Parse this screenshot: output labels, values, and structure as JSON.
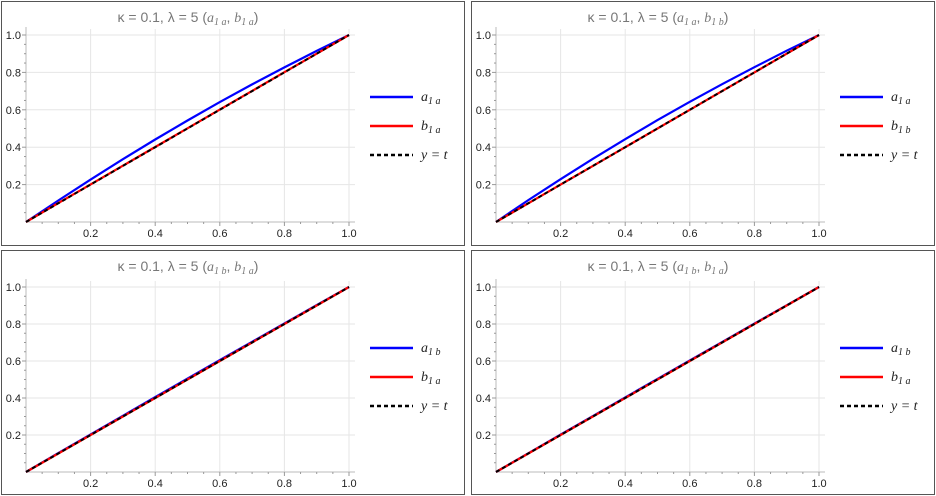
{
  "colors": {
    "a": "#0000ff",
    "b": "#ff0000",
    "ref": "#000000",
    "grid": "#e6e6e6",
    "title": "#777777"
  },
  "chart_data": [
    {
      "type": "line",
      "title": {
        "prefix": "κ = 0.1, λ = 5 (",
        "items": [
          {
            "base": "a",
            "sub": "1 a"
          },
          {
            "base": "b",
            "sub": "1 a"
          }
        ],
        "suffix": ")"
      },
      "xlim": [
        0,
        1
      ],
      "ylim": [
        0,
        1
      ],
      "xticks": [
        "0.2",
        "0.4",
        "0.6",
        "0.8",
        "1.0"
      ],
      "yticks": [
        "0.2",
        "0.4",
        "0.6",
        "0.8",
        "1.0"
      ],
      "grid": true,
      "legend": "right",
      "x": [
        0,
        0.1,
        0.2,
        0.3,
        0.4,
        0.5,
        0.6,
        0.7,
        0.8,
        0.9,
        1.0
      ],
      "series": [
        {
          "name": {
            "base": "a",
            "sub": "1 a"
          },
          "color": "#0000ff",
          "style": "solid",
          "values": [
            0,
            0.115,
            0.227,
            0.336,
            0.441,
            0.543,
            0.641,
            0.736,
            0.827,
            0.915,
            1
          ]
        },
        {
          "name": {
            "base": "b",
            "sub": "1 a"
          },
          "color": "#ff0000",
          "style": "solid",
          "values": [
            0,
            0.101,
            0.201,
            0.301,
            0.401,
            0.501,
            0.601,
            0.701,
            0.801,
            0.9,
            1
          ]
        },
        {
          "name": {
            "base": "y = t",
            "sub": ""
          },
          "color": "#000000",
          "style": "dashed",
          "values": [
            0,
            0.1,
            0.2,
            0.3,
            0.4,
            0.5,
            0.6,
            0.7,
            0.8,
            0.9,
            1
          ]
        }
      ]
    },
    {
      "type": "line",
      "title": {
        "prefix": "κ = 0.1, λ = 5 (",
        "items": [
          {
            "base": "a",
            "sub": "1 a"
          },
          {
            "base": "b",
            "sub": "1 b"
          }
        ],
        "suffix": ")"
      },
      "xlim": [
        0,
        1
      ],
      "ylim": [
        0,
        1
      ],
      "xticks": [
        "0.2",
        "0.4",
        "0.6",
        "0.8",
        "1.0"
      ],
      "yticks": [
        "0.2",
        "0.4",
        "0.6",
        "0.8",
        "1.0"
      ],
      "grid": true,
      "legend": "right",
      "x": [
        0,
        0.1,
        0.2,
        0.3,
        0.4,
        0.5,
        0.6,
        0.7,
        0.8,
        0.9,
        1.0
      ],
      "series": [
        {
          "name": {
            "base": "a",
            "sub": "1 a"
          },
          "color": "#0000ff",
          "style": "solid",
          "values": [
            0,
            0.117,
            0.229,
            0.338,
            0.443,
            0.545,
            0.643,
            0.737,
            0.828,
            0.916,
            1
          ]
        },
        {
          "name": {
            "base": "b",
            "sub": "1 b"
          },
          "color": "#ff0000",
          "style": "solid",
          "values": [
            0,
            0.1,
            0.2,
            0.3,
            0.4,
            0.5,
            0.6,
            0.7,
            0.8,
            0.9,
            1
          ]
        },
        {
          "name": {
            "base": "y = t",
            "sub": ""
          },
          "color": "#000000",
          "style": "dashed",
          "values": [
            0,
            0.1,
            0.2,
            0.3,
            0.4,
            0.5,
            0.6,
            0.7,
            0.8,
            0.9,
            1
          ]
        }
      ]
    },
    {
      "type": "line",
      "title": {
        "prefix": "κ = 0.1, λ = 5 (",
        "items": [
          {
            "base": "a",
            "sub": "1 b"
          },
          {
            "base": "b",
            "sub": "1 a"
          }
        ],
        "suffix": ")"
      },
      "xlim": [
        0,
        1
      ],
      "ylim": [
        0,
        1
      ],
      "xticks": [
        "0.2",
        "0.4",
        "0.6",
        "0.8",
        "1.0"
      ],
      "yticks": [
        "0.2",
        "0.4",
        "0.6",
        "0.8",
        "1.0"
      ],
      "grid": true,
      "legend": "right",
      "x": [
        0,
        0.1,
        0.2,
        0.3,
        0.4,
        0.5,
        0.6,
        0.7,
        0.8,
        0.9,
        1.0
      ],
      "series": [
        {
          "name": {
            "base": "a",
            "sub": "1 b"
          },
          "color": "#0000ff",
          "style": "solid",
          "values": [
            0,
            0.102,
            0.203,
            0.304,
            0.405,
            0.505,
            0.605,
            0.704,
            0.803,
            0.902,
            1
          ]
        },
        {
          "name": {
            "base": "b",
            "sub": "1 a"
          },
          "color": "#ff0000",
          "style": "solid",
          "values": [
            0,
            0.1,
            0.2,
            0.3,
            0.4,
            0.5,
            0.6,
            0.7,
            0.8,
            0.9,
            1
          ]
        },
        {
          "name": {
            "base": "y = t",
            "sub": ""
          },
          "color": "#000000",
          "style": "dashed",
          "values": [
            0,
            0.1,
            0.2,
            0.3,
            0.4,
            0.5,
            0.6,
            0.7,
            0.8,
            0.9,
            1
          ]
        }
      ]
    },
    {
      "type": "line",
      "title": {
        "prefix": "κ = 0.1, λ = 5 (",
        "items": [
          {
            "base": "a",
            "sub": "1 b"
          },
          {
            "base": "b",
            "sub": "1 a"
          }
        ],
        "suffix": ")"
      },
      "xlim": [
        0,
        1
      ],
      "ylim": [
        0,
        1
      ],
      "xticks": [
        "0.2",
        "0.4",
        "0.6",
        "0.8",
        "1.0"
      ],
      "yticks": [
        "0.2",
        "0.4",
        "0.6",
        "0.8",
        "1.0"
      ],
      "grid": true,
      "legend": "right",
      "x": [
        0,
        0.1,
        0.2,
        0.3,
        0.4,
        0.5,
        0.6,
        0.7,
        0.8,
        0.9,
        1.0
      ],
      "series": [
        {
          "name": {
            "base": "a",
            "sub": "1 b"
          },
          "color": "#0000ff",
          "style": "solid",
          "values": [
            0,
            0.101,
            0.202,
            0.302,
            0.403,
            0.503,
            0.603,
            0.702,
            0.802,
            0.901,
            1
          ]
        },
        {
          "name": {
            "base": "b",
            "sub": "1 a"
          },
          "color": "#ff0000",
          "style": "solid",
          "values": [
            0,
            0.1,
            0.2,
            0.3,
            0.4,
            0.5,
            0.6,
            0.7,
            0.8,
            0.9,
            1
          ]
        },
        {
          "name": {
            "base": "y = t",
            "sub": ""
          },
          "color": "#000000",
          "style": "dashed",
          "values": [
            0,
            0.1,
            0.2,
            0.3,
            0.4,
            0.5,
            0.6,
            0.7,
            0.8,
            0.9,
            1
          ]
        }
      ]
    }
  ]
}
